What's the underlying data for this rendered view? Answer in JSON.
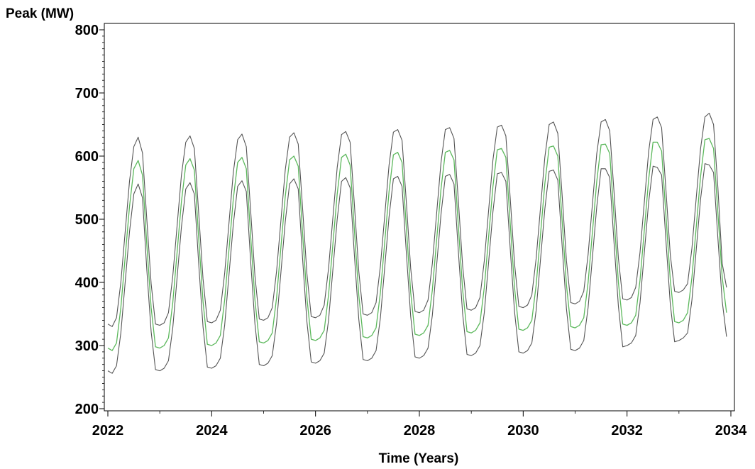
{
  "chart_data": {
    "type": "line",
    "title": "",
    "xlabel": "Time  (Years)",
    "ylabel": "Peak  (MW)",
    "xlim": [
      2022,
      2034
    ],
    "ylim": [
      200,
      800
    ],
    "xticks": [
      "2022",
      "2024",
      "2026",
      "2028",
      "2030",
      "2032",
      "2034"
    ],
    "yticks": [
      "200",
      "300",
      "400",
      "500",
      "600",
      "700",
      "800"
    ],
    "grid": false,
    "legend": "none",
    "colors": {
      "forecast": "#5cb85c",
      "bounds": "#555555",
      "axis": "#000000"
    },
    "x": [
      2022.0,
      2022.0833,
      2022.1667,
      2022.25,
      2022.3333,
      2022.4167,
      2022.5,
      2022.5833,
      2022.6667,
      2022.75,
      2022.8333,
      2022.9167,
      2023.0,
      2023.0833,
      2023.1667,
      2023.25,
      2023.3333,
      2023.4167,
      2023.5,
      2023.5833,
      2023.6667,
      2023.75,
      2023.8333,
      2023.9167,
      2024.0,
      2024.0833,
      2024.1667,
      2024.25,
      2024.3333,
      2024.4167,
      2024.5,
      2024.5833,
      2024.6667,
      2024.75,
      2024.8333,
      2024.9167,
      2025.0,
      2025.0833,
      2025.1667,
      2025.25,
      2025.3333,
      2025.4167,
      2025.5,
      2025.5833,
      2025.6667,
      2025.75,
      2025.8333,
      2025.9167,
      2026.0,
      2026.0833,
      2026.1667,
      2026.25,
      2026.3333,
      2026.4167,
      2026.5,
      2026.5833,
      2026.6667,
      2026.75,
      2026.8333,
      2026.9167,
      2027.0,
      2027.0833,
      2027.1667,
      2027.25,
      2027.3333,
      2027.4167,
      2027.5,
      2027.5833,
      2027.6667,
      2027.75,
      2027.8333,
      2027.9167,
      2028.0,
      2028.0833,
      2028.1667,
      2028.25,
      2028.3333,
      2028.4167,
      2028.5,
      2028.5833,
      2028.6667,
      2028.75,
      2028.8333,
      2028.9167,
      2029.0,
      2029.0833,
      2029.1667,
      2029.25,
      2029.3333,
      2029.4167,
      2029.5,
      2029.5833,
      2029.6667,
      2029.75,
      2029.8333,
      2029.9167,
      2030.0,
      2030.0833,
      2030.1667,
      2030.25,
      2030.3333,
      2030.4167,
      2030.5,
      2030.5833,
      2030.6667,
      2030.75,
      2030.8333,
      2030.9167,
      2031.0,
      2031.0833,
      2031.1667,
      2031.25,
      2031.3333,
      2031.4167,
      2031.5,
      2031.5833,
      2031.6667,
      2031.75,
      2031.8333,
      2031.9167,
      2032.0,
      2032.0833,
      2032.1667,
      2032.25,
      2032.3333,
      2032.4167,
      2032.5,
      2032.5833,
      2032.6667,
      2032.75,
      2032.8333,
      2032.9167,
      2033.0,
      2033.0833,
      2033.1667,
      2033.25,
      2033.3333,
      2033.4167,
      2033.5,
      2033.5833,
      2033.6667,
      2033.75,
      2033.8333,
      2033.9167
    ],
    "series": [
      {
        "key": "forecast",
        "values": [
          296,
          292,
          304,
          360,
          440,
          520,
          580,
          593,
          570,
          460,
          360,
          298,
          296,
          300,
          312,
          368,
          448,
          528,
          586,
          596,
          578,
          470,
          370,
          302,
          300,
          304,
          316,
          372,
          452,
          532,
          590,
          598,
          580,
          474,
          372,
          306,
          304,
          308,
          320,
          376,
          456,
          536,
          594,
          600,
          584,
          478,
          376,
          310,
          308,
          312,
          324,
          380,
          460,
          540,
          598,
          603,
          586,
          482,
          380,
          314,
          312,
          316,
          328,
          384,
          464,
          544,
          602,
          606,
          590,
          486,
          384,
          318,
          316,
          320,
          332,
          388,
          468,
          548,
          606,
          609,
          594,
          490,
          388,
          322,
          320,
          324,
          336,
          392,
          472,
          552,
          610,
          612,
          598,
          494,
          392,
          326,
          324,
          328,
          340,
          396,
          476,
          556,
          614,
          616,
          600,
          498,
          396,
          330,
          328,
          332,
          344,
          400,
          480,
          560,
          618,
          619,
          604,
          502,
          400,
          334,
          332,
          336,
          348,
          404,
          484,
          564,
          622,
          622,
          608,
          506,
          404,
          338,
          336,
          340,
          352,
          408,
          488,
          568,
          626,
          628,
          612,
          510,
          408,
          352
        ]
      },
      {
        "key": "upper",
        "values": [
          334,
          330,
          344,
          400,
          480,
          560,
          615,
          630,
          605,
          500,
          398,
          334,
          332,
          336,
          352,
          410,
          490,
          570,
          622,
          632,
          612,
          510,
          406,
          338,
          336,
          340,
          356,
          414,
          494,
          574,
          626,
          635,
          615,
          514,
          410,
          342,
          340,
          344,
          360,
          418,
          498,
          578,
          630,
          637,
          619,
          518,
          414,
          346,
          344,
          348,
          364,
          422,
          502,
          582,
          634,
          639,
          622,
          522,
          418,
          350,
          348,
          352,
          368,
          426,
          506,
          586,
          638,
          642,
          625,
          526,
          422,
          354,
          352,
          356,
          372,
          430,
          510,
          590,
          642,
          645,
          628,
          530,
          426,
          358,
          356,
          360,
          376,
          434,
          514,
          594,
          646,
          649,
          632,
          534,
          430,
          362,
          360,
          364,
          380,
          438,
          518,
          598,
          650,
          654,
          636,
          538,
          434,
          368,
          366,
          370,
          386,
          444,
          524,
          604,
          654,
          658,
          640,
          542,
          438,
          374,
          372,
          376,
          392,
          448,
          528,
          608,
          658,
          662,
          645,
          546,
          444,
          386,
          384,
          388,
          398,
          454,
          534,
          612,
          662,
          668,
          650,
          550,
          430,
          392
        ]
      },
      {
        "key": "lower",
        "values": [
          260,
          256,
          268,
          320,
          400,
          480,
          540,
          556,
          534,
          420,
          322,
          262,
          260,
          264,
          276,
          328,
          408,
          488,
          548,
          558,
          540,
          430,
          330,
          266,
          264,
          268,
          280,
          332,
          412,
          492,
          552,
          561,
          544,
          434,
          334,
          270,
          268,
          272,
          284,
          336,
          416,
          496,
          556,
          564,
          548,
          438,
          338,
          274,
          272,
          276,
          288,
          340,
          420,
          500,
          560,
          566,
          550,
          442,
          342,
          278,
          276,
          280,
          292,
          344,
          424,
          504,
          564,
          568,
          552,
          446,
          346,
          282,
          280,
          284,
          296,
          348,
          428,
          508,
          568,
          571,
          556,
          450,
          350,
          286,
          284,
          288,
          300,
          352,
          432,
          512,
          572,
          574,
          560,
          454,
          354,
          290,
          288,
          292,
          304,
          356,
          436,
          516,
          576,
          578,
          562,
          458,
          358,
          294,
          292,
          296,
          308,
          360,
          440,
          520,
          580,
          580,
          566,
          462,
          362,
          298,
          300,
          304,
          316,
          368,
          448,
          528,
          584,
          582,
          570,
          466,
          366,
          306,
          308,
          312,
          320,
          372,
          452,
          532,
          588,
          586,
          574,
          470,
          370,
          314
        ]
      }
    ]
  }
}
